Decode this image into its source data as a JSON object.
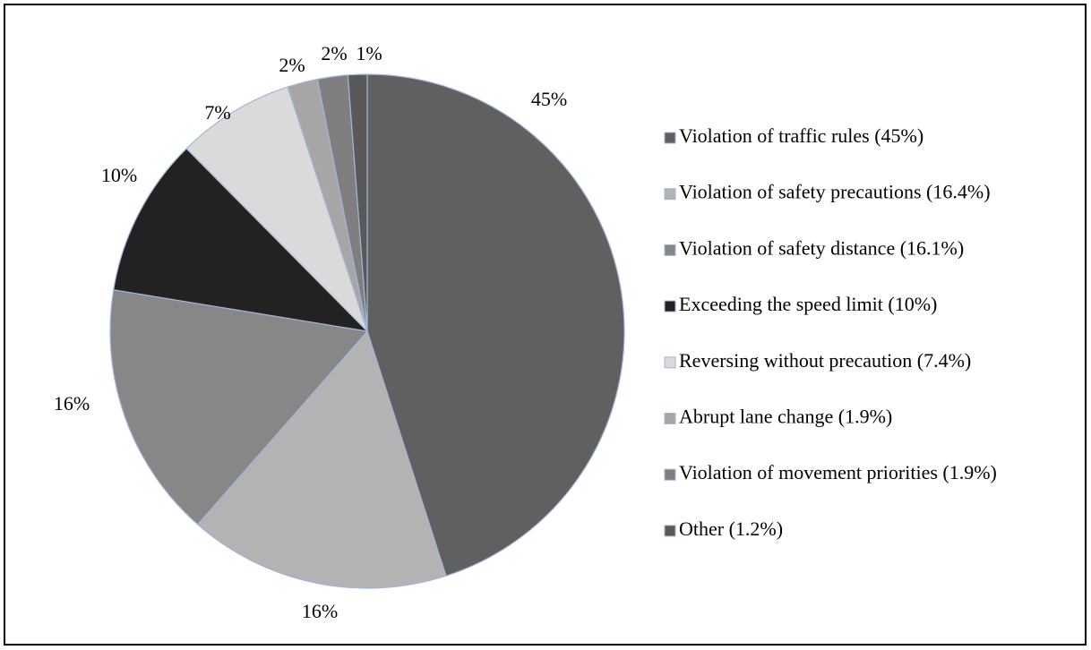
{
  "chart_data": {
    "type": "pie",
    "categories": [
      "Violation of traffic rules (45%)",
      "Violation of safety precautions (16.4%)",
      "Violation of safety distance (16.1%)",
      "Exceeding the speed limit (10%)",
      "Reversing without precaution (7.4%)",
      "Abrupt lane change (1.9%)",
      "Violation of movement priorities (1.9%)",
      "Other (1.2%)"
    ],
    "values": [
      45,
      16.4,
      16.1,
      10,
      7.4,
      1.9,
      1.9,
      1.2
    ],
    "value_labels": [
      "45%",
      "16%",
      "16%",
      "10%",
      "7%",
      "2%",
      "2%",
      "1%"
    ],
    "colors": [
      "#606060",
      "#b3b3b3",
      "#878787",
      "#222222",
      "#dadada",
      "#a6a6a6",
      "#7f7f7f",
      "#595959"
    ],
    "legend": "right"
  }
}
